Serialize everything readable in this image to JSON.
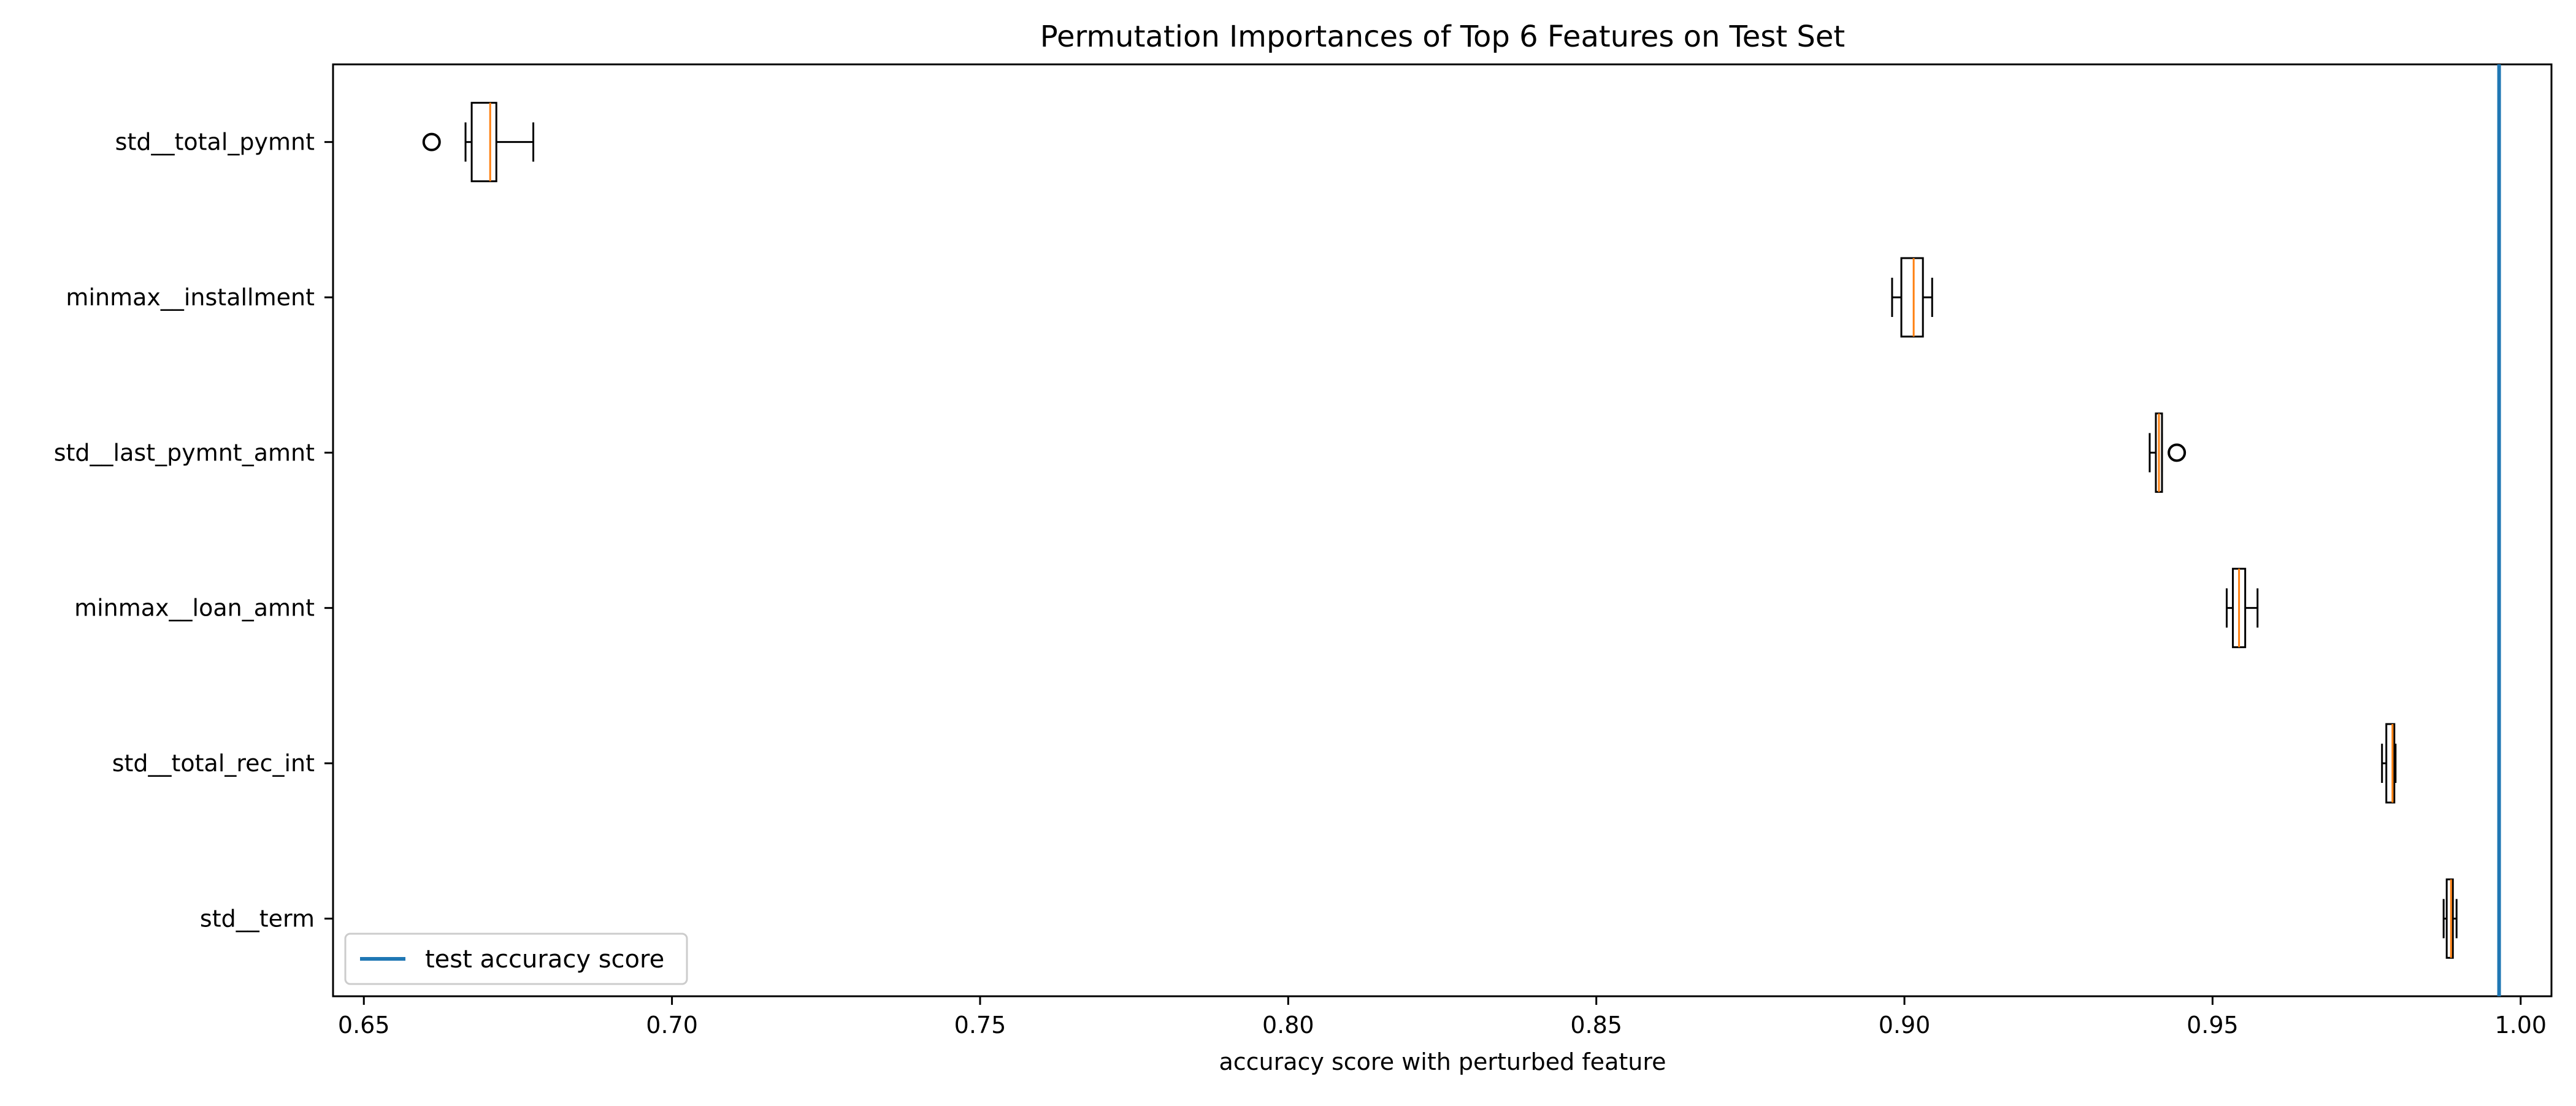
{
  "chart_data": {
    "type": "boxplot",
    "orientation": "horizontal",
    "title": "Permutation Importances of Top 6 Features on Test Set",
    "xlabel": "accuracy score with perturbed feature",
    "ylabel": "",
    "xlim": [
      0.645,
      1.005
    ],
    "xticks": [
      {
        "value": 0.65,
        "label": "0.65"
      },
      {
        "value": 0.7,
        "label": "0.70"
      },
      {
        "value": 0.75,
        "label": "0.75"
      },
      {
        "value": 0.8,
        "label": "0.80"
      },
      {
        "value": 0.85,
        "label": "0.85"
      },
      {
        "value": 0.9,
        "label": "0.90"
      },
      {
        "value": 0.95,
        "label": "0.95"
      },
      {
        "value": 1.0,
        "label": "1.00"
      }
    ],
    "categories": [
      "std__total_pymnt",
      "minmax__installment",
      "std__last_pymnt_amnt",
      "minmax__loan_amnt",
      "std__total_rec_int",
      "std__term"
    ],
    "boxes": [
      {
        "feature": "std__total_pymnt",
        "whisker_low": 0.6665,
        "q1": 0.6675,
        "median": 0.6705,
        "q3": 0.6715,
        "whisker_high": 0.6775,
        "outliers": [
          0.661
        ]
      },
      {
        "feature": "minmax__installment",
        "whisker_low": 0.898,
        "q1": 0.8995,
        "median": 0.9015,
        "q3": 0.903,
        "whisker_high": 0.9045,
        "outliers": []
      },
      {
        "feature": "std__last_pymnt_amnt",
        "whisker_low": 0.9398,
        "q1": 0.9408,
        "median": 0.9413,
        "q3": 0.9418,
        "whisker_high": 0.9418,
        "outliers": [
          0.9442
        ]
      },
      {
        "feature": "minmax__loan_amnt",
        "whisker_low": 0.9523,
        "q1": 0.9533,
        "median": 0.9543,
        "q3": 0.9553,
        "whisker_high": 0.9573,
        "outliers": []
      },
      {
        "feature": "std__total_rec_int",
        "whisker_low": 0.9775,
        "q1": 0.9782,
        "median": 0.9792,
        "q3": 0.9795,
        "whisker_high": 0.9797,
        "outliers": []
      },
      {
        "feature": "std__term",
        "whisker_low": 0.9875,
        "q1": 0.988,
        "median": 0.9887,
        "q3": 0.989,
        "whisker_high": 0.9896,
        "outliers": []
      }
    ],
    "reference_line": {
      "value": 0.9965,
      "label": "test accuracy score",
      "color": "#1f77b4"
    },
    "legend": {
      "position": "lower-left",
      "entries": [
        "test accuracy score"
      ]
    },
    "grid": false,
    "colors": {
      "box": "#000000",
      "median": "#ff7f0e",
      "reference": "#1f77b4"
    }
  }
}
